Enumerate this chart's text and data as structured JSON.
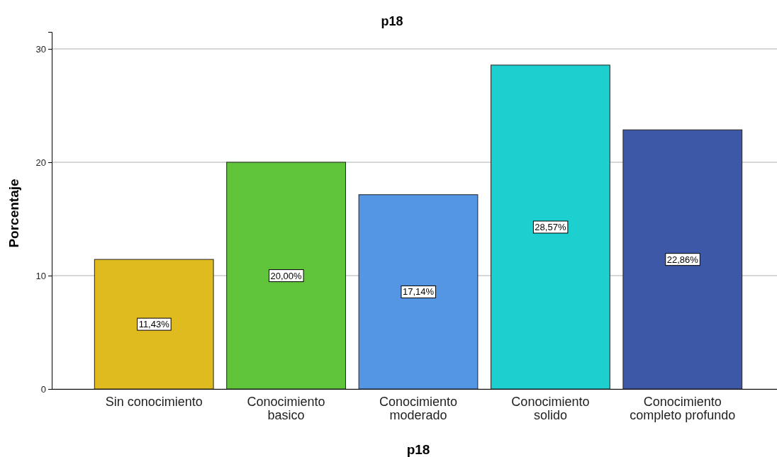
{
  "chart_data": {
    "type": "bar",
    "title": "p18",
    "xlabel": "p18",
    "ylabel": "Porcentaje",
    "categories": [
      "Sin conocimiento",
      "Conocimiento basico",
      "Conocimiento moderado",
      "Conocimiento solido",
      "Conocimiento completo profundo"
    ],
    "values": [
      11.43,
      20.0,
      17.14,
      28.57,
      22.86
    ],
    "colors": [
      "#e0bb1f",
      "#5fc43a",
      "#5596e4",
      "#1ecfcf",
      "#3e58a8"
    ],
    "value_labels": [
      "11,43%",
      "20,00%",
      "17,14%",
      "28,57%",
      "22,86%"
    ],
    "ylim": [
      0,
      31.5
    ],
    "yticks": [
      0,
      10,
      20,
      30
    ],
    "grid": "y"
  }
}
